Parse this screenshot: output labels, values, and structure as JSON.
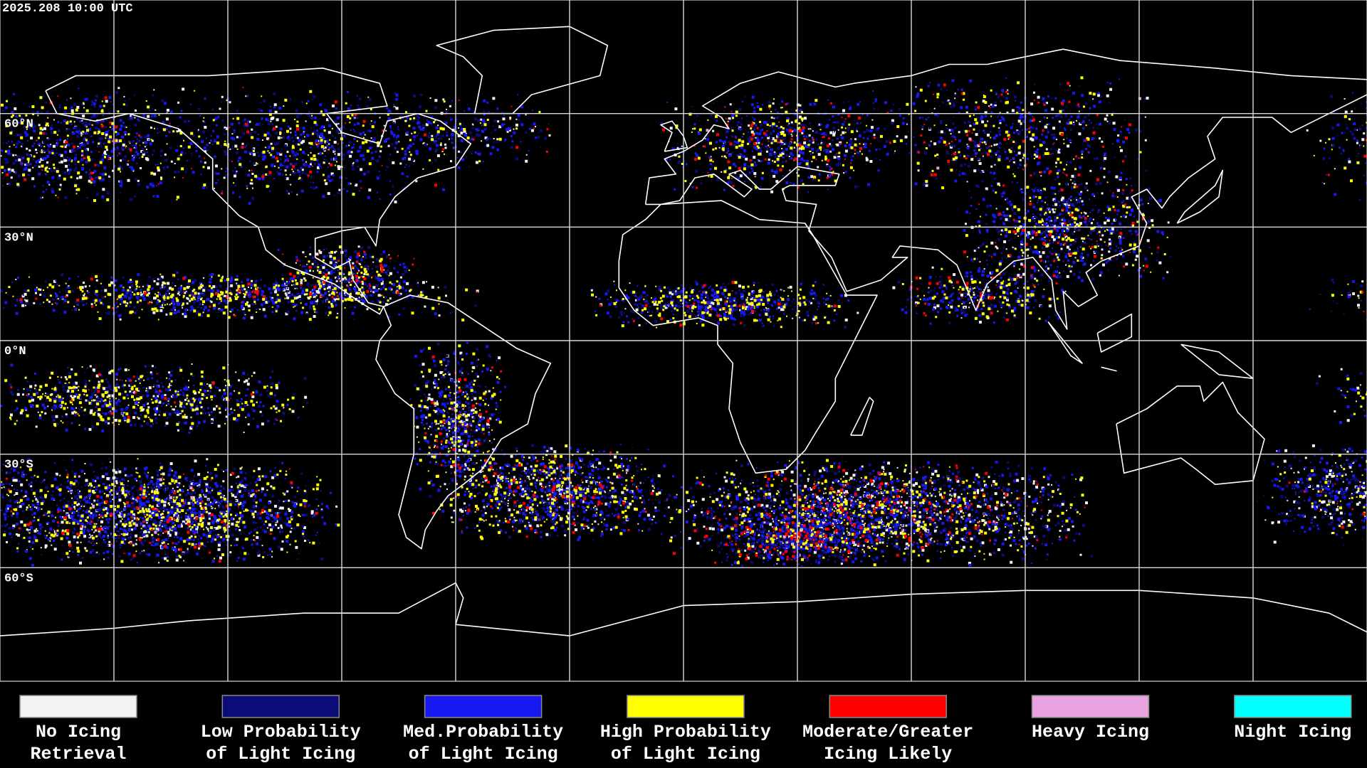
{
  "timestamp": "2025.208 10:00 UTC",
  "map": {
    "lat_ticks": [
      {
        "value": 60,
        "label": "60°N"
      },
      {
        "value": 30,
        "label": "30°N"
      },
      {
        "value": 0,
        "label": "0°N"
      },
      {
        "value": -30,
        "label": "30°S"
      },
      {
        "value": -60,
        "label": "60°S"
      }
    ]
  },
  "legend": [
    {
      "label": [
        "No Icing",
        "Retrieval"
      ],
      "color": "#f2f2f2"
    },
    {
      "label": [
        "Low Probability",
        "of Light Icing"
      ],
      "color": "#0c0c78"
    },
    {
      "label": [
        "Med.Probability",
        "of Light Icing"
      ],
      "color": "#1818f0"
    },
    {
      "label": [
        "High Probability",
        "of Light Icing"
      ],
      "color": "#ffff00"
    },
    {
      "label": [
        "Moderate/Greater",
        "Icing Likely"
      ],
      "color": "#ff0000"
    },
    {
      "label": [
        "Heavy Icing"
      ],
      "color": "#e8a2e0"
    },
    {
      "label": [
        "Night Icing"
      ],
      "color": "#00ffff"
    }
  ]
}
